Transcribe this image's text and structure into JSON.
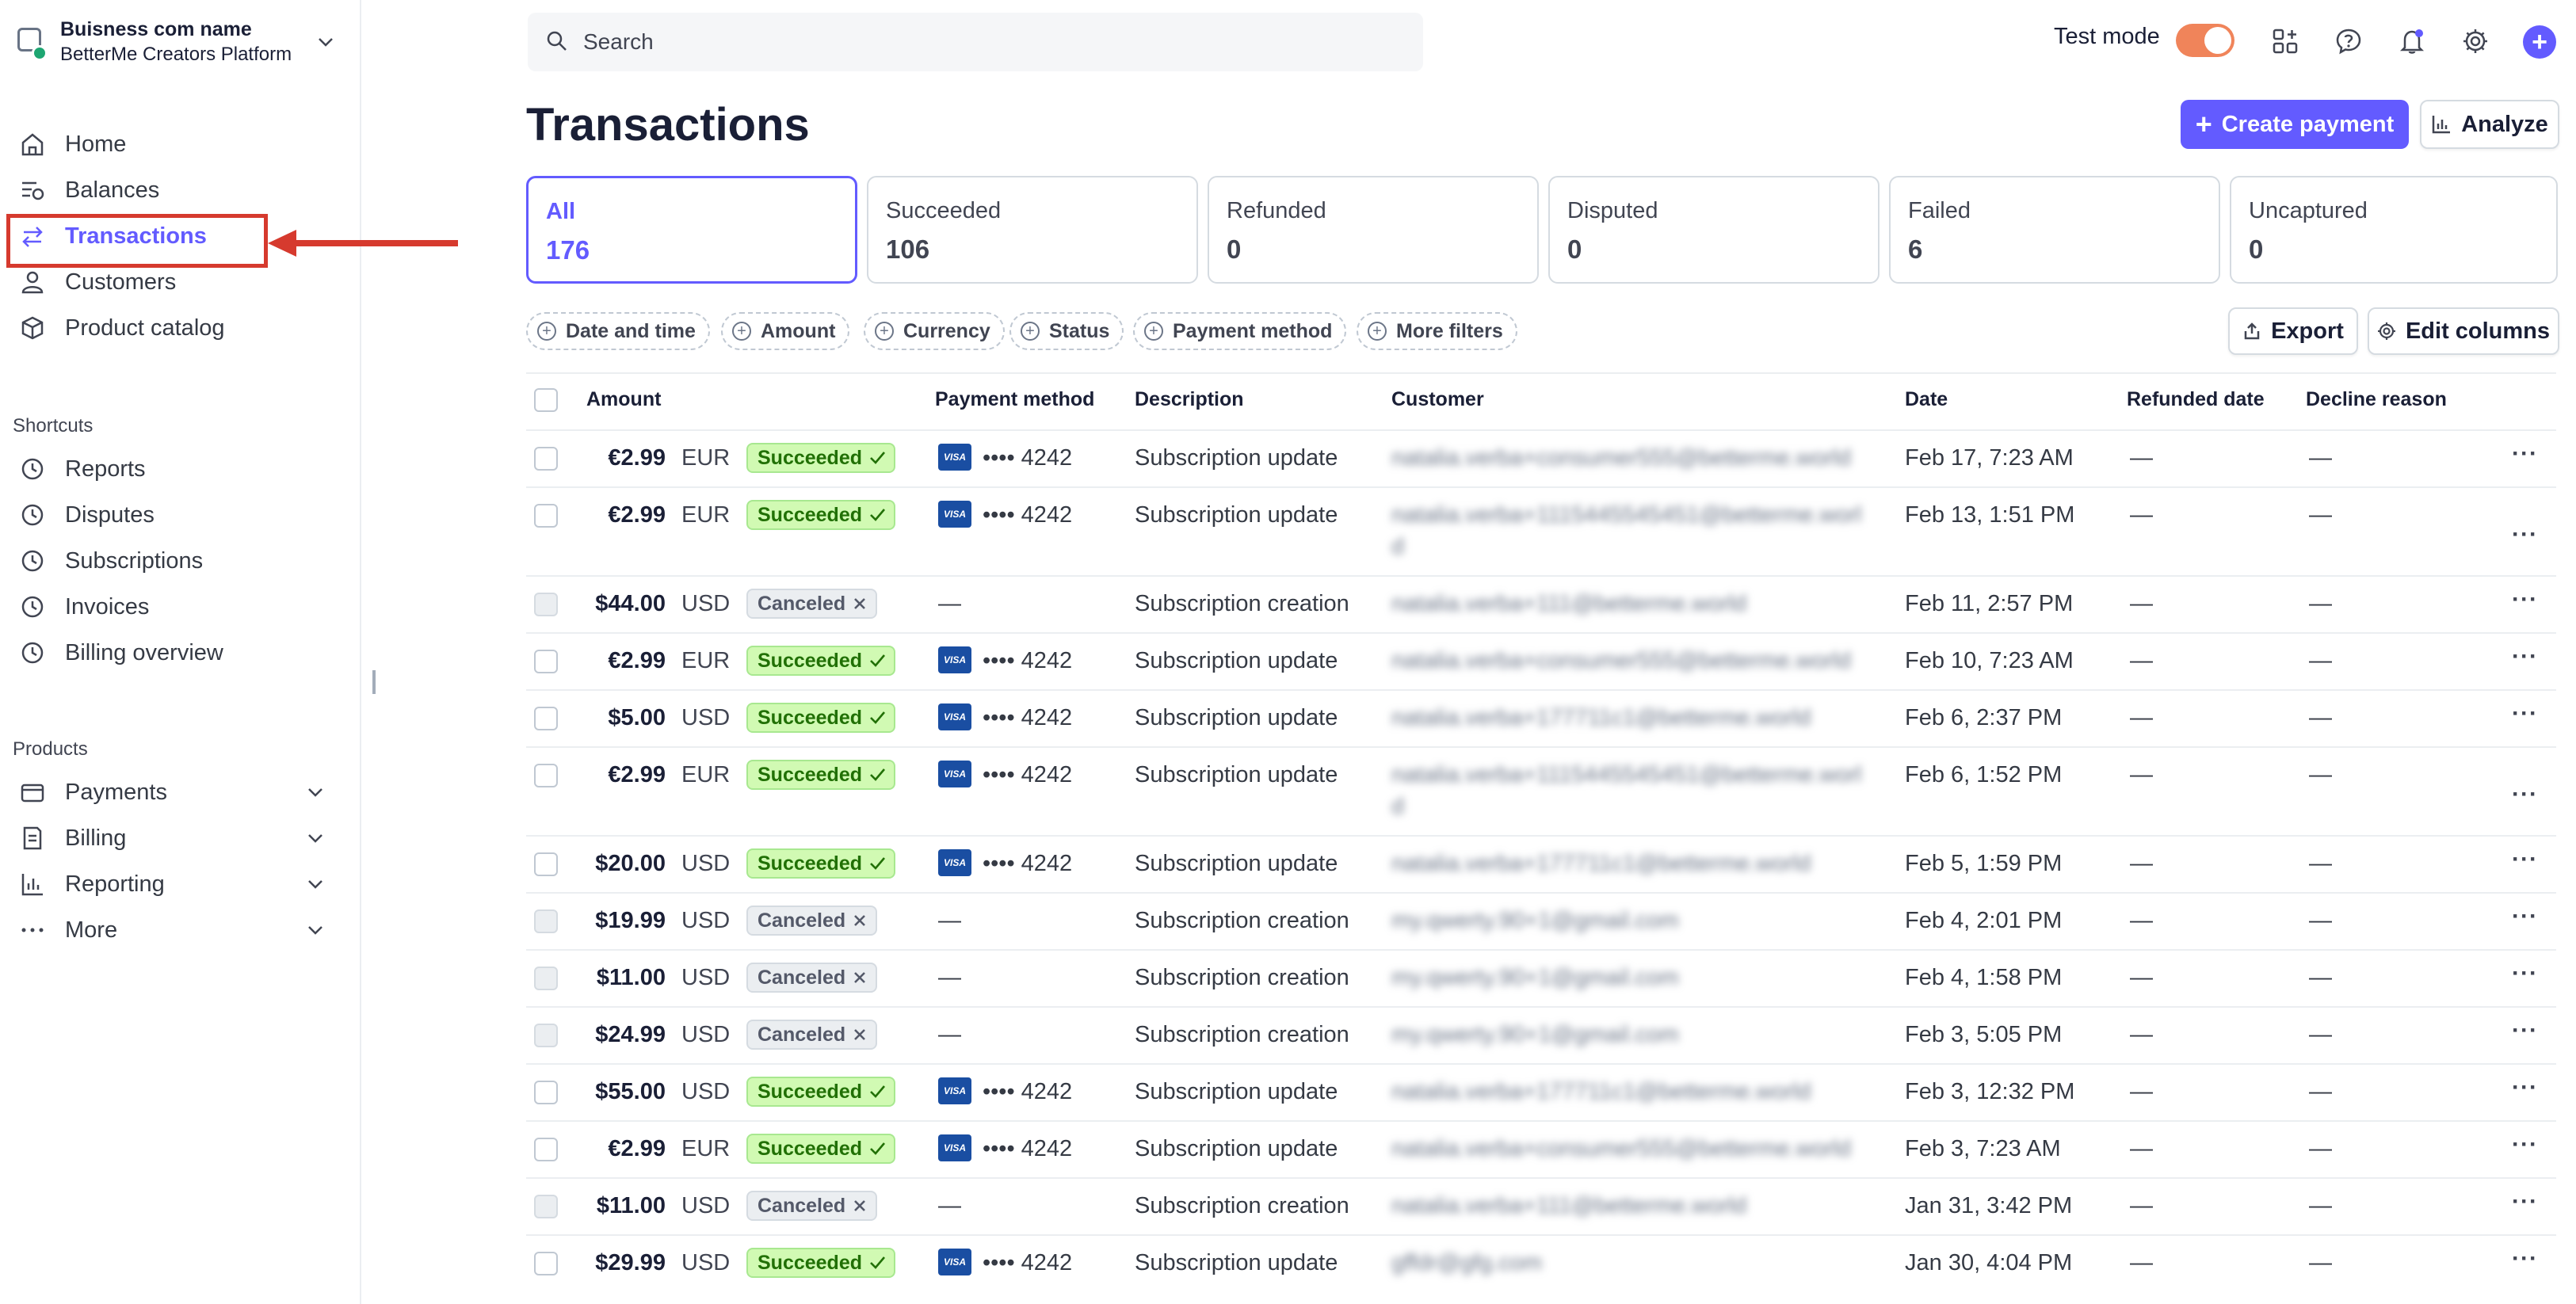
{
  "account": {
    "name": "Buisness com name",
    "platform": "BetterMe Creators Platform"
  },
  "nav": {
    "main": [
      {
        "label": "Home",
        "icon": "home-icon"
      },
      {
        "label": "Balances",
        "icon": "balances-icon"
      },
      {
        "label": "Transactions",
        "icon": "transactions-icon",
        "active": true
      },
      {
        "label": "Customers",
        "icon": "customers-icon"
      },
      {
        "label": "Product catalog",
        "icon": "product-catalog-icon"
      }
    ],
    "shortcuts_label": "Shortcuts",
    "shortcuts": [
      {
        "label": "Reports",
        "icon": "clock-icon"
      },
      {
        "label": "Disputes",
        "icon": "clock-icon"
      },
      {
        "label": "Subscriptions",
        "icon": "clock-icon"
      },
      {
        "label": "Invoices",
        "icon": "clock-icon"
      },
      {
        "label": "Billing overview",
        "icon": "clock-icon"
      }
    ],
    "products_label": "Products",
    "products": [
      {
        "label": "Payments",
        "icon": "payments-icon"
      },
      {
        "label": "Billing",
        "icon": "billing-icon"
      },
      {
        "label": "Reporting",
        "icon": "reporting-icon"
      },
      {
        "label": "More",
        "icon": "more-icon"
      }
    ]
  },
  "topbar": {
    "search_placeholder": "Search",
    "test_mode_label": "Test mode",
    "test_mode_on": true
  },
  "page": {
    "title": "Transactions",
    "create_payment_label": "Create payment",
    "analyze_label": "Analyze",
    "export_label": "Export",
    "edit_columns_label": "Edit columns"
  },
  "status_cards": [
    {
      "label": "All",
      "count": "176",
      "active": true
    },
    {
      "label": "Succeeded",
      "count": "106"
    },
    {
      "label": "Refunded",
      "count": "0"
    },
    {
      "label": "Disputed",
      "count": "0"
    },
    {
      "label": "Failed",
      "count": "6"
    },
    {
      "label": "Uncaptured",
      "count": "0"
    }
  ],
  "filters": [
    "Date and time",
    "Amount",
    "Currency",
    "Status",
    "Payment method",
    "More filters"
  ],
  "table": {
    "headers": {
      "amount": "Amount",
      "payment_method": "Payment method",
      "description": "Description",
      "customer": "Customer",
      "date": "Date",
      "refunded_date": "Refunded date",
      "decline_reason": "Decline reason"
    },
    "rows": [
      {
        "amount": "€2.99",
        "currency": "EUR",
        "status": "Succeeded",
        "pm": "•••• 4242",
        "description": "Subscription update",
        "customer": "natalia.verba+consumer555@betterme.world",
        "date": "Feb 17, 7:23 AM",
        "refunded": "—",
        "decline": "—"
      },
      {
        "amount": "€2.99",
        "currency": "EUR",
        "status": "Succeeded",
        "pm": "•••• 4242",
        "description": "Subscription update",
        "customer": "natalia.verba+1115445545451@betterme.worl",
        "customer2": "d",
        "date": "Feb 13, 1:51 PM",
        "refunded": "—",
        "decline": "—"
      },
      {
        "amount": "$44.00",
        "currency": "USD",
        "status": "Canceled",
        "pm": "—",
        "description": "Subscription creation",
        "customer": "natalia.verba+111@betterme.world",
        "date": "Feb 11, 2:57 PM",
        "refunded": "—",
        "decline": "—"
      },
      {
        "amount": "€2.99",
        "currency": "EUR",
        "status": "Succeeded",
        "pm": "•••• 4242",
        "description": "Subscription update",
        "customer": "natalia.verba+consumer555@betterme.world",
        "date": "Feb 10, 7:23 AM",
        "refunded": "—",
        "decline": "—"
      },
      {
        "amount": "$5.00",
        "currency": "USD",
        "status": "Succeeded",
        "pm": "•••• 4242",
        "description": "Subscription update",
        "customer": "natalia.verba+177711c1@betterme.world",
        "date": "Feb 6, 2:37 PM",
        "refunded": "—",
        "decline": "—"
      },
      {
        "amount": "€2.99",
        "currency": "EUR",
        "status": "Succeeded",
        "pm": "•••• 4242",
        "description": "Subscription update",
        "customer": "natalia.verba+1115445545451@betterme.worl",
        "customer2": "d",
        "date": "Feb 6, 1:52 PM",
        "refunded": "—",
        "decline": "—"
      },
      {
        "amount": "$20.00",
        "currency": "USD",
        "status": "Succeeded",
        "pm": "•••• 4242",
        "description": "Subscription update",
        "customer": "natalia.verba+177711c1@betterme.world",
        "date": "Feb 5, 1:59 PM",
        "refunded": "—",
        "decline": "—"
      },
      {
        "amount": "$19.99",
        "currency": "USD",
        "status": "Canceled",
        "pm": "—",
        "description": "Subscription creation",
        "customer": "my.qwerty.90+1@gmail.com",
        "date": "Feb 4, 2:01 PM",
        "refunded": "—",
        "decline": "—"
      },
      {
        "amount": "$11.00",
        "currency": "USD",
        "status": "Canceled",
        "pm": "—",
        "description": "Subscription creation",
        "customer": "my.qwerty.90+1@gmail.com",
        "date": "Feb 4, 1:58 PM",
        "refunded": "—",
        "decline": "—"
      },
      {
        "amount": "$24.99",
        "currency": "USD",
        "status": "Canceled",
        "pm": "—",
        "description": "Subscription creation",
        "customer": "my.qwerty.90+1@gmail.com",
        "date": "Feb 3, 5:05 PM",
        "refunded": "—",
        "decline": "—"
      },
      {
        "amount": "$55.00",
        "currency": "USD",
        "status": "Succeeded",
        "pm": "•••• 4242",
        "description": "Subscription update",
        "customer": "natalia.verba+177711c1@betterme.world",
        "date": "Feb 3, 12:32 PM",
        "refunded": "—",
        "decline": "—"
      },
      {
        "amount": "€2.99",
        "currency": "EUR",
        "status": "Succeeded",
        "pm": "•••• 4242",
        "description": "Subscription update",
        "customer": "natalia.verba+consumer555@betterme.world",
        "date": "Feb 3, 7:23 AM",
        "refunded": "—",
        "decline": "—"
      },
      {
        "amount": "$11.00",
        "currency": "USD",
        "status": "Canceled",
        "pm": "—",
        "description": "Subscription creation",
        "customer": "natalia.verba+111@betterme.world",
        "date": "Jan 31, 3:42 PM",
        "refunded": "—",
        "decline": "—"
      },
      {
        "amount": "$29.99",
        "currency": "USD",
        "status": "Succeeded",
        "pm": "•••• 4242",
        "description": "Subscription update",
        "customer": "gffdr@gfg.com",
        "date": "Jan 30, 4:04 PM",
        "refunded": "—",
        "decline": "—"
      }
    ]
  },
  "colors": {
    "accent": "#635bff",
    "success_bg": "#d1fab3",
    "success_text": "#217005",
    "annotation": "#d63a2e",
    "toggle": "#f0845a"
  }
}
